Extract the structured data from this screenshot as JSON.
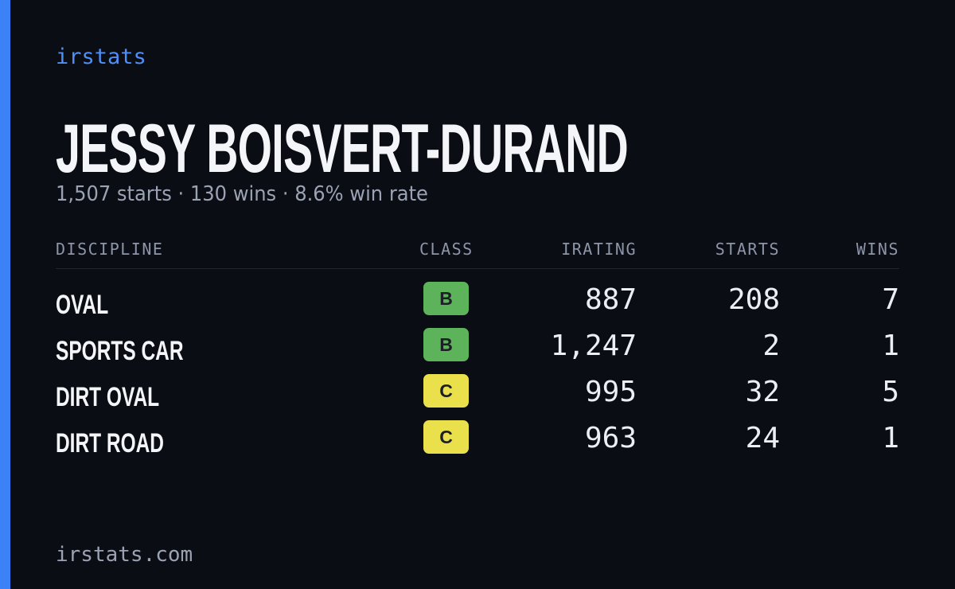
{
  "brand": "irstats",
  "driver": {
    "name": "JESSY BOISVERT-DURAND",
    "summary": "1,507 starts · 130 wins · 8.6% win rate"
  },
  "table": {
    "headers": [
      "DISCIPLINE",
      "CLASS",
      "IRATING",
      "STARTS",
      "WINS"
    ],
    "rows": [
      {
        "discipline": "OVAL",
        "class": "B",
        "class_color": "#5cb35a",
        "irating": "887",
        "starts": "208",
        "wins": "7"
      },
      {
        "discipline": "SPORTS CAR",
        "class": "B",
        "class_color": "#5cb35a",
        "irating": "1,247",
        "starts": "2",
        "wins": "1"
      },
      {
        "discipline": "DIRT OVAL",
        "class": "C",
        "class_color": "#e9e04b",
        "irating": "995",
        "starts": "32",
        "wins": "5"
      },
      {
        "discipline": "DIRT ROAD",
        "class": "C",
        "class_color": "#e9e04b",
        "irating": "963",
        "starts": "24",
        "wins": "1"
      }
    ]
  },
  "footer": "irstats.com"
}
